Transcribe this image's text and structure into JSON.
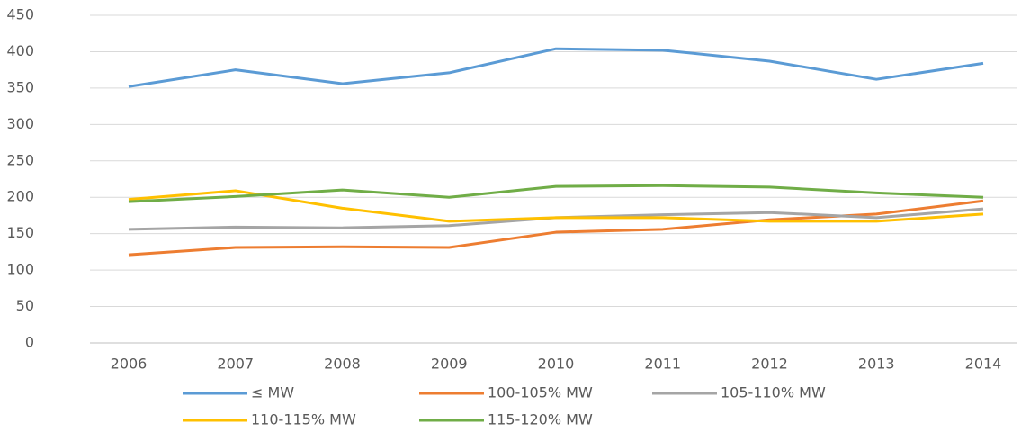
{
  "chart_data": {
    "type": "line",
    "categories": [
      "2006",
      "2007",
      "2008",
      "2009",
      "2010",
      "2011",
      "2012",
      "2013",
      "2014"
    ],
    "series": [
      {
        "name": "≤ MW",
        "color": "#5b9bd5",
        "values": [
          352,
          375,
          356,
          371,
          404,
          402,
          387,
          362,
          384
        ]
      },
      {
        "name": "100-105% MW",
        "color": "#ed7d31",
        "values": [
          121,
          131,
          132,
          131,
          152,
          156,
          169,
          177,
          195
        ]
      },
      {
        "name": "105-110% MW",
        "color": "#a5a5a5",
        "values": [
          156,
          159,
          158,
          161,
          172,
          176,
          179,
          172,
          184
        ]
      },
      {
        "name": "110-115% MW",
        "color": "#ffc000",
        "values": [
          197,
          209,
          185,
          167,
          172,
          172,
          167,
          167,
          177
        ]
      },
      {
        "name": "115-120% MW",
        "color": "#70ad47",
        "values": [
          194,
          201,
          210,
          200,
          215,
          216,
          214,
          206,
          200
        ]
      }
    ],
    "ylim": [
      0,
      450
    ],
    "yticks": [
      0,
      50,
      100,
      150,
      200,
      250,
      300,
      350,
      400,
      450
    ],
    "grid": true,
    "legend": "bottom"
  }
}
